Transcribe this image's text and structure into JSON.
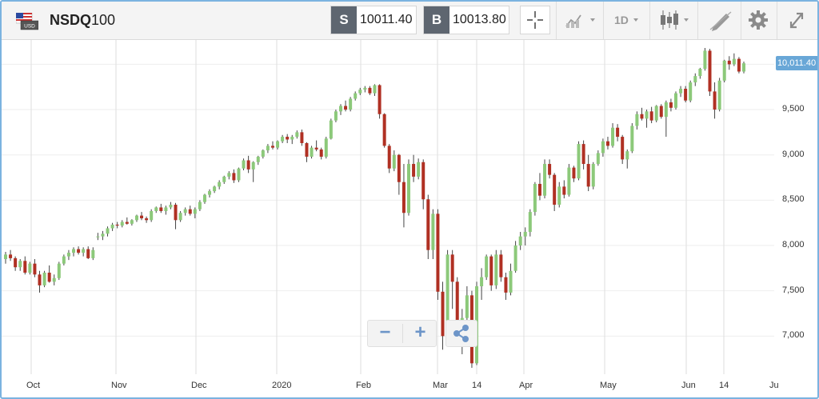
{
  "symbol": {
    "code": "NSDQ",
    "suffix": "100",
    "flag_text": "USD"
  },
  "sell": {
    "tag": "S",
    "value": "10011.40"
  },
  "buy": {
    "tag": "B",
    "value": "10013.80"
  },
  "timeframe": "1D",
  "toolbar_icons": [
    "crosshair-icon",
    "chart-style-icon",
    "timeframe-dropdown",
    "candles-icon",
    "draw-icon",
    "gear-icon",
    "expand-icon"
  ],
  "colors": {
    "up": "#8cc97a",
    "down": "#b03023",
    "last_price": "#69a7d7",
    "frame": "#7bb3e0"
  },
  "yaxis": {
    "ticks": [
      "10,000",
      "9,500",
      "9,000",
      "8,500",
      "8,000",
      "7,500",
      "7,000"
    ],
    "last_price_label": "10,011.40"
  },
  "xaxis": {
    "ticks": [
      "Oct",
      "Nov",
      "Dec",
      "2020",
      "Feb",
      "Mar",
      "14",
      "Apr",
      "May",
      "Jun",
      "14",
      "Ju"
    ]
  },
  "zoom": {
    "minus": "−",
    "plus": "+"
  },
  "chart_data": {
    "type": "candlestick",
    "ylim": [
      6600,
      10280
    ],
    "last_price": 10011.4,
    "series": [
      [
        7850,
        7930,
        7800,
        7900
      ],
      [
        7900,
        7950,
        7830,
        7860
      ],
      [
        7860,
        7880,
        7720,
        7760
      ],
      [
        7760,
        7850,
        7720,
        7830
      ],
      [
        7830,
        7880,
        7680,
        7700
      ],
      [
        7700,
        7820,
        7680,
        7800
      ],
      [
        7800,
        7850,
        7650,
        7680
      ],
      [
        7680,
        7720,
        7480,
        7560
      ],
      [
        7560,
        7720,
        7540,
        7700
      ],
      [
        7700,
        7780,
        7590,
        7600
      ],
      [
        7600,
        7680,
        7560,
        7640
      ],
      [
        7640,
        7820,
        7620,
        7800
      ],
      [
        7800,
        7900,
        7780,
        7880
      ],
      [
        7880,
        7950,
        7840,
        7920
      ],
      [
        7920,
        7980,
        7880,
        7960
      ],
      [
        7960,
        7990,
        7900,
        7920
      ],
      [
        7920,
        7980,
        7880,
        7960
      ],
      [
        7960,
        7990,
        7850,
        7860
      ],
      [
        7860,
        7980,
        7840,
        7950
      ],
      [
        8100,
        8140,
        8060,
        8100
      ],
      [
        8100,
        8160,
        8060,
        8130
      ],
      [
        8130,
        8210,
        8100,
        8190
      ],
      [
        8190,
        8250,
        8160,
        8230
      ],
      [
        8230,
        8260,
        8190,
        8220
      ],
      [
        8220,
        8280,
        8200,
        8260
      ],
      [
        8260,
        8310,
        8230,
        8240
      ],
      [
        8240,
        8290,
        8220,
        8280
      ],
      [
        8280,
        8340,
        8260,
        8330
      ],
      [
        8330,
        8370,
        8280,
        8300
      ],
      [
        8300,
        8320,
        8250,
        8280
      ],
      [
        8280,
        8400,
        8260,
        8380
      ],
      [
        8380,
        8430,
        8360,
        8420
      ],
      [
        8420,
        8460,
        8360,
        8380
      ],
      [
        8380,
        8440,
        8340,
        8420
      ],
      [
        8420,
        8480,
        8400,
        8450
      ],
      [
        8450,
        8470,
        8180,
        8280
      ],
      [
        8280,
        8380,
        8260,
        8360
      ],
      [
        8360,
        8420,
        8330,
        8400
      ],
      [
        8400,
        8440,
        8330,
        8350
      ],
      [
        8350,
        8420,
        8300,
        8400
      ],
      [
        8400,
        8500,
        8380,
        8480
      ],
      [
        8480,
        8570,
        8460,
        8560
      ],
      [
        8560,
        8620,
        8530,
        8600
      ],
      [
        8600,
        8660,
        8580,
        8650
      ],
      [
        8650,
        8720,
        8620,
        8700
      ],
      [
        8700,
        8770,
        8680,
        8760
      ],
      [
        8760,
        8820,
        8730,
        8800
      ],
      [
        8800,
        8840,
        8690,
        8720
      ],
      [
        8720,
        8860,
        8700,
        8850
      ],
      [
        8850,
        8960,
        8830,
        8940
      ],
      [
        8940,
        8990,
        8800,
        8840
      ],
      [
        8840,
        8930,
        8700,
        8920
      ],
      [
        8920,
        8990,
        8890,
        8980
      ],
      [
        8980,
        9060,
        8960,
        9050
      ],
      [
        9050,
        9120,
        9020,
        9100
      ],
      [
        9100,
        9150,
        9060,
        9080
      ],
      [
        9080,
        9160,
        9060,
        9150
      ],
      [
        9150,
        9220,
        9130,
        9200
      ],
      [
        9200,
        9230,
        9130,
        9170
      ],
      [
        9170,
        9220,
        9120,
        9200
      ],
      [
        9200,
        9270,
        9180,
        9250
      ],
      [
        9250,
        9280,
        9100,
        9130
      ],
      [
        9130,
        9140,
        8920,
        8980
      ],
      [
        8980,
        9100,
        8960,
        9080
      ],
      [
        9080,
        9160,
        9040,
        9060
      ],
      [
        9060,
        9080,
        8950,
        8980
      ],
      [
        8980,
        9200,
        8960,
        9180
      ],
      [
        9180,
        9400,
        9170,
        9380
      ],
      [
        9380,
        9500,
        9360,
        9480
      ],
      [
        9480,
        9560,
        9440,
        9540
      ],
      [
        9540,
        9600,
        9480,
        9500
      ],
      [
        9500,
        9640,
        9480,
        9620
      ],
      [
        9620,
        9700,
        9600,
        9680
      ],
      [
        9680,
        9740,
        9660,
        9720
      ],
      [
        9720,
        9760,
        9690,
        9740
      ],
      [
        9740,
        9760,
        9660,
        9680
      ],
      [
        9680,
        9780,
        9650,
        9770
      ],
      [
        9770,
        9780,
        9400,
        9450
      ],
      [
        9450,
        9460,
        9080,
        9100
      ],
      [
        9100,
        9120,
        8800,
        8850
      ],
      [
        8850,
        9050,
        8820,
        9000
      ],
      [
        9000,
        9010,
        8560,
        8700
      ],
      [
        8700,
        8900,
        8200,
        8360
      ],
      [
        8360,
        8950,
        8330,
        8900
      ],
      [
        8900,
        9000,
        8700,
        8760
      ],
      [
        8760,
        8960,
        8730,
        8920
      ],
      [
        8920,
        8950,
        8400,
        8510
      ],
      [
        8510,
        8560,
        7850,
        7950
      ],
      [
        7950,
        8400,
        7850,
        8350
      ],
      [
        8350,
        8400,
        7400,
        7490
      ],
      [
        7490,
        7600,
        6850,
        7000
      ],
      [
        7000,
        7950,
        6920,
        7900
      ],
      [
        7900,
        7950,
        7300,
        7600
      ],
      [
        7600,
        7650,
        6900,
        7050
      ],
      [
        7050,
        7300,
        6800,
        7200
      ],
      [
        7200,
        7550,
        7100,
        7450
      ],
      [
        7450,
        7500,
        6650,
        6700
      ],
      [
        6700,
        7600,
        6680,
        7550
      ],
      [
        7550,
        7750,
        7400,
        7650
      ],
      [
        7650,
        7900,
        7620,
        7880
      ],
      [
        7880,
        7900,
        7500,
        7560
      ],
      [
        7560,
        7950,
        7520,
        7900
      ],
      [
        7900,
        7950,
        7600,
        7650
      ],
      [
        7650,
        7700,
        7400,
        7480
      ],
      [
        7480,
        7800,
        7450,
        7720
      ],
      [
        7720,
        8050,
        7700,
        8000
      ],
      [
        8000,
        8150,
        7950,
        8100
      ],
      [
        8100,
        8200,
        8000,
        8150
      ],
      [
        8150,
        8400,
        8100,
        8370
      ],
      [
        8370,
        8700,
        8330,
        8680
      ],
      [
        8680,
        8800,
        8500,
        8550
      ],
      [
        8550,
        8950,
        8520,
        8900
      ],
      [
        8900,
        8950,
        8740,
        8780
      ],
      [
        8780,
        8800,
        8380,
        8450
      ],
      [
        8450,
        8700,
        8420,
        8650
      ],
      [
        8650,
        8720,
        8520,
        8560
      ],
      [
        8560,
        8900,
        8540,
        8860
      ],
      [
        8860,
        8880,
        8700,
        8740
      ],
      [
        8740,
        9150,
        8720,
        9120
      ],
      [
        9120,
        9160,
        8840,
        8900
      ],
      [
        8900,
        9000,
        8600,
        8650
      ],
      [
        8650,
        8920,
        8620,
        8900
      ],
      [
        8900,
        9050,
        8880,
        9020
      ],
      [
        9020,
        9180,
        8980,
        9150
      ],
      [
        9150,
        9200,
        9060,
        9100
      ],
      [
        9100,
        9350,
        9080,
        9300
      ],
      [
        9300,
        9340,
        9150,
        9200
      ],
      [
        9200,
        9220,
        8900,
        8950
      ],
      [
        8950,
        9060,
        8850,
        9040
      ],
      [
        9040,
        9350,
        9020,
        9320
      ],
      [
        9320,
        9480,
        9280,
        9450
      ],
      [
        9450,
        9520,
        9380,
        9400
      ],
      [
        9400,
        9500,
        9300,
        9480
      ],
      [
        9480,
        9530,
        9350,
        9380
      ],
      [
        9380,
        9550,
        9360,
        9540
      ],
      [
        9540,
        9560,
        9400,
        9420
      ],
      [
        9420,
        9600,
        9200,
        9580
      ],
      [
        9580,
        9620,
        9480,
        9520
      ],
      [
        9520,
        9700,
        9500,
        9680
      ],
      [
        9680,
        9760,
        9640,
        9730
      ],
      [
        9730,
        9760,
        9580,
        9600
      ],
      [
        9600,
        9820,
        9580,
        9800
      ],
      [
        9800,
        9900,
        9760,
        9870
      ],
      [
        9870,
        9960,
        9840,
        9950
      ],
      [
        9950,
        10180,
        9930,
        10150
      ],
      [
        10150,
        10170,
        9650,
        9700
      ],
      [
        9700,
        9800,
        9400,
        9500
      ],
      [
        9500,
        9850,
        9480,
        9820
      ],
      [
        9820,
        10050,
        9800,
        10040
      ],
      [
        10040,
        10090,
        9940,
        10000
      ],
      [
        10000,
        10120,
        9980,
        10060
      ],
      [
        10060,
        10080,
        9900,
        9920
      ],
      [
        9920,
        10030,
        9900,
        10011
      ]
    ]
  }
}
